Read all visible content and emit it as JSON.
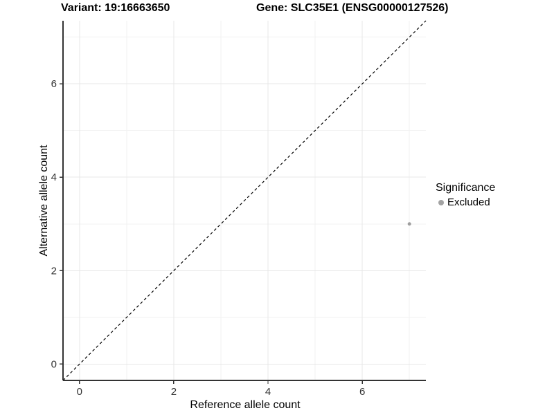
{
  "chart_data": {
    "type": "scatter",
    "titles": {
      "left": "Variant: 19:16663650",
      "right": "Gene: SLC35E1 (ENSG00000127526)"
    },
    "xlabel": "Reference allele count",
    "ylabel": "Alternative allele count",
    "xlim": [
      -0.35,
      7.35
    ],
    "ylim": [
      -0.35,
      7.35
    ],
    "major_ticks": [
      0,
      2,
      4,
      6
    ],
    "minor_ticks": [
      1,
      3,
      5,
      7
    ],
    "grid": true,
    "points": [
      {
        "x": 7,
        "y": 3,
        "significance": "Excluded"
      }
    ],
    "identity_line": {
      "slope": 1,
      "intercept": 0,
      "style": "dashed",
      "color": "#000000"
    },
    "legend": {
      "title": "Significance",
      "position": "right",
      "items": [
        {
          "label": "Excluded",
          "color": "#a3a3a3"
        }
      ]
    },
    "colors": {
      "point": "#9e9e9e",
      "axis_line": "#333333",
      "tick_label": "#333333",
      "grid_major": "#e7e7e7",
      "grid_minor": "#f2f2f2",
      "background": "#ffffff"
    }
  }
}
